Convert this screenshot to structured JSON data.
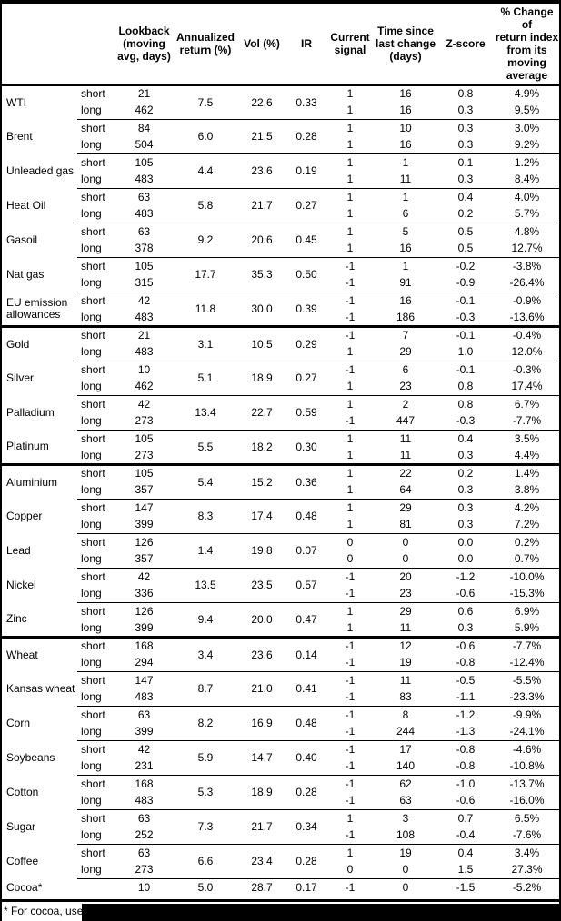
{
  "table": {
    "columns": [
      {
        "key": "lookback",
        "label": "Lookback\n(moving\navg, days)"
      },
      {
        "key": "annualized",
        "label": "Annualized\nreturn (%)"
      },
      {
        "key": "vol",
        "label": "Vol (%)"
      },
      {
        "key": "ir",
        "label": "IR"
      },
      {
        "key": "signal",
        "label": "Current\nsignal"
      },
      {
        "key": "time_since",
        "label": "Time since\nlast change\n(days)"
      },
      {
        "key": "zscore",
        "label": "Z-score"
      },
      {
        "key": "pct_change",
        "label": "% Change of\nreturn index\nfrom its\nmoving\naverage"
      }
    ],
    "groups": [
      {
        "name": "WTI",
        "rule": "none",
        "annualized": "7.5",
        "vol": "22.6",
        "ir": "0.33",
        "rows": [
          {
            "leg": "short",
            "lookback": "21",
            "signal": "1",
            "time_since": "16",
            "zscore": "0.8",
            "pct_change": "4.9%"
          },
          {
            "leg": "long",
            "lookback": "462",
            "signal": "1",
            "time_since": "16",
            "zscore": "0.3",
            "pct_change": "9.5%"
          }
        ]
      },
      {
        "name": "Brent",
        "rule": "thin",
        "annualized": "6.0",
        "vol": "21.5",
        "ir": "0.28",
        "rows": [
          {
            "leg": "short",
            "lookback": "84",
            "signal": "1",
            "time_since": "10",
            "zscore": "0.3",
            "pct_change": "3.0%"
          },
          {
            "leg": "long",
            "lookback": "504",
            "signal": "1",
            "time_since": "16",
            "zscore": "0.3",
            "pct_change": "9.2%"
          }
        ]
      },
      {
        "name": "Unleaded gas",
        "rule": "thin",
        "annualized": "4.4",
        "vol": "23.6",
        "ir": "0.19",
        "rows": [
          {
            "leg": "short",
            "lookback": "105",
            "signal": "1",
            "time_since": "1",
            "zscore": "0.1",
            "pct_change": "1.2%"
          },
          {
            "leg": "long",
            "lookback": "483",
            "signal": "1",
            "time_since": "11",
            "zscore": "0.3",
            "pct_change": "8.4%"
          }
        ]
      },
      {
        "name": "Heat Oil",
        "rule": "thin",
        "annualized": "5.8",
        "vol": "21.7",
        "ir": "0.27",
        "rows": [
          {
            "leg": "short",
            "lookback": "63",
            "signal": "1",
            "time_since": "1",
            "zscore": "0.4",
            "pct_change": "4.0%"
          },
          {
            "leg": "long",
            "lookback": "483",
            "signal": "1",
            "time_since": "6",
            "zscore": "0.2",
            "pct_change": "5.7%"
          }
        ]
      },
      {
        "name": "Gasoil",
        "rule": "thin",
        "annualized": "9.2",
        "vol": "20.6",
        "ir": "0.45",
        "rows": [
          {
            "leg": "short",
            "lookback": "63",
            "signal": "1",
            "time_since": "5",
            "zscore": "0.5",
            "pct_change": "4.8%"
          },
          {
            "leg": "long",
            "lookback": "378",
            "signal": "1",
            "time_since": "16",
            "zscore": "0.5",
            "pct_change": "12.7%"
          }
        ]
      },
      {
        "name": "Nat gas",
        "rule": "thin",
        "annualized": "17.7",
        "vol": "35.3",
        "ir": "0.50",
        "rows": [
          {
            "leg": "short",
            "lookback": "105",
            "signal": "-1",
            "time_since": "1",
            "zscore": "-0.2",
            "pct_change": "-3.8%"
          },
          {
            "leg": "long",
            "lookback": "315",
            "signal": "-1",
            "time_since": "91",
            "zscore": "-0.9",
            "pct_change": "-26.4%"
          }
        ]
      },
      {
        "name": "EU emission allowances",
        "rule": "thin",
        "annualized": "11.8",
        "vol": "30.0",
        "ir": "0.39",
        "rows": [
          {
            "leg": "short",
            "lookback": "42",
            "signal": "-1",
            "time_since": "16",
            "zscore": "-0.1",
            "pct_change": "-0.9%"
          },
          {
            "leg": "long",
            "lookback": "483",
            "signal": "-1",
            "time_since": "186",
            "zscore": "-0.3",
            "pct_change": "-13.6%"
          }
        ]
      },
      {
        "name": "Gold",
        "rule": "thick",
        "annualized": "3.1",
        "vol": "10.5",
        "ir": "0.29",
        "rows": [
          {
            "leg": "short",
            "lookback": "21",
            "signal": "-1",
            "time_since": "7",
            "zscore": "-0.1",
            "pct_change": "-0.4%"
          },
          {
            "leg": "long",
            "lookback": "483",
            "signal": "1",
            "time_since": "29",
            "zscore": "1.0",
            "pct_change": "12.0%"
          }
        ]
      },
      {
        "name": "Silver",
        "rule": "thin",
        "annualized": "5.1",
        "vol": "18.9",
        "ir": "0.27",
        "rows": [
          {
            "leg": "short",
            "lookback": "10",
            "signal": "-1",
            "time_since": "6",
            "zscore": "-0.1",
            "pct_change": "-0.3%"
          },
          {
            "leg": "long",
            "lookback": "462",
            "signal": "1",
            "time_since": "23",
            "zscore": "0.8",
            "pct_change": "17.4%"
          }
        ]
      },
      {
        "name": "Palladium",
        "rule": "thin",
        "annualized": "13.4",
        "vol": "22.7",
        "ir": "0.59",
        "rows": [
          {
            "leg": "short",
            "lookback": "42",
            "signal": "1",
            "time_since": "2",
            "zscore": "0.8",
            "pct_change": "6.7%"
          },
          {
            "leg": "long",
            "lookback": "273",
            "signal": "-1",
            "time_since": "447",
            "zscore": "-0.3",
            "pct_change": "-7.7%"
          }
        ]
      },
      {
        "name": "Platinum",
        "rule": "thin",
        "annualized": "5.5",
        "vol": "18.2",
        "ir": "0.30",
        "rows": [
          {
            "leg": "short",
            "lookback": "105",
            "signal": "1",
            "time_since": "11",
            "zscore": "0.4",
            "pct_change": "3.5%"
          },
          {
            "leg": "long",
            "lookback": "273",
            "signal": "1",
            "time_since": "11",
            "zscore": "0.3",
            "pct_change": "4.4%"
          }
        ]
      },
      {
        "name": "Aluminium",
        "rule": "thick",
        "annualized": "5.4",
        "vol": "15.2",
        "ir": "0.36",
        "rows": [
          {
            "leg": "short",
            "lookback": "105",
            "signal": "1",
            "time_since": "22",
            "zscore": "0.2",
            "pct_change": "1.4%"
          },
          {
            "leg": "long",
            "lookback": "357",
            "signal": "1",
            "time_since": "64",
            "zscore": "0.3",
            "pct_change": "3.8%"
          }
        ]
      },
      {
        "name": "Copper",
        "rule": "thin",
        "annualized": "8.3",
        "vol": "17.4",
        "ir": "0.48",
        "rows": [
          {
            "leg": "short",
            "lookback": "147",
            "signal": "1",
            "time_since": "29",
            "zscore": "0.3",
            "pct_change": "4.2%"
          },
          {
            "leg": "long",
            "lookback": "399",
            "signal": "1",
            "time_since": "81",
            "zscore": "0.3",
            "pct_change": "7.2%"
          }
        ]
      },
      {
        "name": "Lead",
        "rule": "thin",
        "annualized": "1.4",
        "vol": "19.8",
        "ir": "0.07",
        "rows": [
          {
            "leg": "short",
            "lookback": "126",
            "signal": "0",
            "time_since": "0",
            "zscore": "0.0",
            "pct_change": "0.2%"
          },
          {
            "leg": "long",
            "lookback": "357",
            "signal": "0",
            "time_since": "0",
            "zscore": "0.0",
            "pct_change": "0.7%"
          }
        ]
      },
      {
        "name": "Nickel",
        "rule": "thin",
        "annualized": "13.5",
        "vol": "23.5",
        "ir": "0.57",
        "rows": [
          {
            "leg": "short",
            "lookback": "42",
            "signal": "-1",
            "time_since": "20",
            "zscore": "-1.2",
            "pct_change": "-10.0%"
          },
          {
            "leg": "long",
            "lookback": "336",
            "signal": "-1",
            "time_since": "23",
            "zscore": "-0.6",
            "pct_change": "-15.3%"
          }
        ]
      },
      {
        "name": "Zinc",
        "rule": "thin",
        "annualized": "9.4",
        "vol": "20.0",
        "ir": "0.47",
        "rows": [
          {
            "leg": "short",
            "lookback": "126",
            "signal": "1",
            "time_since": "29",
            "zscore": "0.6",
            "pct_change": "6.9%"
          },
          {
            "leg": "long",
            "lookback": "399",
            "signal": "1",
            "time_since": "11",
            "zscore": "0.3",
            "pct_change": "5.9%"
          }
        ]
      },
      {
        "name": "Wheat",
        "rule": "thick",
        "annualized": "3.4",
        "vol": "23.6",
        "ir": "0.14",
        "rows": [
          {
            "leg": "short",
            "lookback": "168",
            "signal": "-1",
            "time_since": "12",
            "zscore": "-0.6",
            "pct_change": "-7.7%"
          },
          {
            "leg": "long",
            "lookback": "294",
            "signal": "-1",
            "time_since": "19",
            "zscore": "-0.8",
            "pct_change": "-12.4%"
          }
        ]
      },
      {
        "name": "Kansas wheat",
        "rule": "thin",
        "annualized": "8.7",
        "vol": "21.0",
        "ir": "0.41",
        "rows": [
          {
            "leg": "short",
            "lookback": "147",
            "signal": "-1",
            "time_since": "11",
            "zscore": "-0.5",
            "pct_change": "-5.5%"
          },
          {
            "leg": "long",
            "lookback": "483",
            "signal": "-1",
            "time_since": "83",
            "zscore": "-1.1",
            "pct_change": "-23.3%"
          }
        ]
      },
      {
        "name": "Corn",
        "rule": "thin",
        "annualized": "8.2",
        "vol": "16.9",
        "ir": "0.48",
        "rows": [
          {
            "leg": "short",
            "lookback": "63",
            "signal": "-1",
            "time_since": "8",
            "zscore": "-1.2",
            "pct_change": "-9.9%"
          },
          {
            "leg": "long",
            "lookback": "399",
            "signal": "-1",
            "time_since": "244",
            "zscore": "-1.3",
            "pct_change": "-24.1%"
          }
        ]
      },
      {
        "name": "Soybeans",
        "rule": "thin",
        "annualized": "5.9",
        "vol": "14.7",
        "ir": "0.40",
        "rows": [
          {
            "leg": "short",
            "lookback": "42",
            "signal": "-1",
            "time_since": "17",
            "zscore": "-0.8",
            "pct_change": "-4.6%"
          },
          {
            "leg": "long",
            "lookback": "231",
            "signal": "-1",
            "time_since": "140",
            "zscore": "-0.8",
            "pct_change": "-10.8%"
          }
        ]
      },
      {
        "name": "Cotton",
        "rule": "thin",
        "annualized": "5.3",
        "vol": "18.9",
        "ir": "0.28",
        "rows": [
          {
            "leg": "short",
            "lookback": "168",
            "signal": "-1",
            "time_since": "62",
            "zscore": "-1.0",
            "pct_change": "-13.7%"
          },
          {
            "leg": "long",
            "lookback": "483",
            "signal": "-1",
            "time_since": "63",
            "zscore": "-0.6",
            "pct_change": "-16.0%"
          }
        ]
      },
      {
        "name": "Sugar",
        "rule": "thin",
        "annualized": "7.3",
        "vol": "21.7",
        "ir": "0.34",
        "rows": [
          {
            "leg": "short",
            "lookback": "63",
            "signal": "1",
            "time_since": "3",
            "zscore": "0.7",
            "pct_change": "6.5%"
          },
          {
            "leg": "long",
            "lookback": "252",
            "signal": "-1",
            "time_since": "108",
            "zscore": "-0.4",
            "pct_change": "-7.6%"
          }
        ]
      },
      {
        "name": "Coffee",
        "rule": "thin",
        "annualized": "6.6",
        "vol": "23.4",
        "ir": "0.28",
        "rows": [
          {
            "leg": "short",
            "lookback": "63",
            "signal": "1",
            "time_since": "19",
            "zscore": "0.4",
            "pct_change": "3.4%"
          },
          {
            "leg": "long",
            "lookback": "273",
            "signal": "0",
            "time_since": "0",
            "zscore": "1.5",
            "pct_change": "27.3%"
          }
        ]
      },
      {
        "name": "Cocoa*",
        "rule": "thin",
        "annualized": "5.0",
        "vol": "28.7",
        "ir": "0.17",
        "rows": [
          {
            "leg": "",
            "lookback": "10",
            "signal": "-1",
            "time_since": "0",
            "zscore": "-1.5",
            "pct_change": "-5.2%"
          }
        ]
      }
    ]
  },
  "footnote": {
    "visible_text": "* For cocoa, uses",
    "redacted": true
  },
  "colors": {
    "text": "#000000",
    "rule": "#000000",
    "background": "#ffffff",
    "redaction": "#000000"
  }
}
